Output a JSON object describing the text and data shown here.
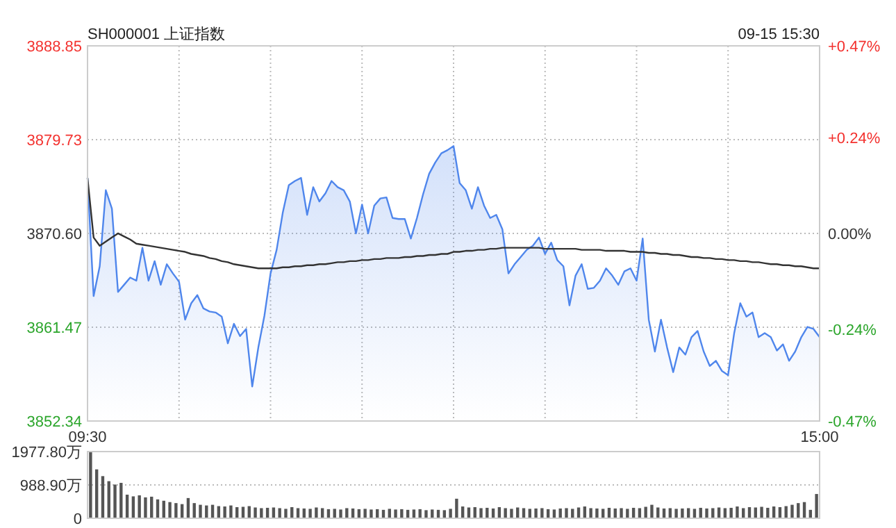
{
  "chart_data": [
    {
      "type": "area",
      "title": "SH000001 上证指数",
      "subtitle": "09-15 15:30",
      "categories": [
        "09:30",
        null,
        null,
        null,
        null,
        null,
        null,
        null,
        null,
        null,
        null,
        null,
        null,
        null,
        null,
        null,
        null,
        null,
        null,
        null,
        null,
        null,
        null,
        null,
        null,
        null,
        null,
        null,
        null,
        null,
        null,
        null,
        null,
        null,
        null,
        null,
        null,
        null,
        null,
        null,
        null,
        null,
        null,
        null,
        null,
        null,
        null,
        null,
        null,
        null,
        null,
        null,
        null,
        null,
        null,
        null,
        null,
        null,
        null,
        null,
        null,
        null,
        null,
        null,
        null,
        null,
        null,
        null,
        null,
        null,
        null,
        null,
        null,
        null,
        null,
        null,
        null,
        null,
        null,
        null,
        null,
        null,
        null,
        null,
        null,
        null,
        null,
        null,
        null,
        null,
        null,
        null,
        null,
        null,
        null,
        null,
        null,
        null,
        null,
        null,
        null,
        null,
        null,
        null,
        null,
        null,
        null,
        null,
        null,
        null,
        null,
        null,
        null,
        null,
        null,
        null,
        null,
        null,
        null,
        null,
        "15:00"
      ],
      "ylim": [
        3852.34,
        3888.85
      ],
      "yticks": [
        {
          "value": 3852.34,
          "label": "3852.34"
        },
        {
          "value": 3861.47,
          "label": "3861.47"
        },
        {
          "value": 3870.6,
          "label": "3870.60"
        },
        {
          "value": 3879.73,
          "label": "3879.73"
        },
        {
          "value": 3888.85,
          "label": "3888.85"
        }
      ],
      "y2lim": [
        -0.47,
        0.47
      ],
      "y2ticks": [
        {
          "value": -0.47,
          "label": "-0.47%"
        },
        {
          "value": -0.24,
          "label": "-0.24%"
        },
        {
          "value": 0,
          "label": "0.00%"
        },
        {
          "value": 0.24,
          "label": "+0.24%"
        },
        {
          "value": 0.47,
          "label": "+0.47%"
        }
      ],
      "grid": true,
      "series": [
        {
          "type": "area",
          "color": "#4f86ec",
          "values": [
            3876.0,
            3864.5,
            3867.4,
            3874.8,
            3873.0,
            3864.9,
            3865.6,
            3866.3,
            3866.0,
            3869.2,
            3866.0,
            3867.9,
            3865.6,
            3867.6,
            3866.7,
            3865.9,
            3862.2,
            3863.8,
            3864.6,
            3863.3,
            3863.0,
            3862.9,
            3862.5,
            3859.9,
            3861.8,
            3860.6,
            3861.3,
            3855.7,
            3859.5,
            3862.6,
            3866.7,
            3869.0,
            3872.6,
            3875.3,
            3875.7,
            3876.0,
            3872.4,
            3875.1,
            3873.7,
            3874.5,
            3875.7,
            3875.1,
            3874.8,
            3873.7,
            3870.6,
            3873.4,
            3870.6,
            3873.3,
            3874.0,
            3874.1,
            3872.1,
            3872.0,
            3872.0,
            3870.1,
            3872.1,
            3874.4,
            3876.4,
            3877.5,
            3878.4,
            3878.7,
            3879.1,
            3875.5,
            3874.8,
            3873.0,
            3875.1,
            3873.3,
            3872.1,
            3872.4,
            3871.0,
            3866.7,
            3867.6,
            3868.3,
            3869.0,
            3869.4,
            3870.2,
            3868.6,
            3869.7,
            3868.0,
            3867.4,
            3863.6,
            3866.5,
            3867.6,
            3865.2,
            3865.3,
            3866.0,
            3867.2,
            3866.5,
            3865.6,
            3866.9,
            3867.2,
            3866.0,
            3870.1,
            3862.2,
            3859.1,
            3862.2,
            3859.5,
            3857.1,
            3859.5,
            3858.8,
            3860.5,
            3861.1,
            3859.1,
            3857.7,
            3858.2,
            3857.2,
            3856.8,
            3860.9,
            3863.8,
            3862.5,
            3862.9,
            3860.5,
            3860.9,
            3860.5,
            3859.2,
            3859.8,
            3858.2,
            3859.1,
            3860.5,
            3861.5,
            3861.3,
            3860.5
          ]
        },
        {
          "type": "line",
          "color": "#333333",
          "values": [
            3876.0,
            3870.2,
            3869.4,
            3869.8,
            3870.2,
            3870.6,
            3870.3,
            3870.0,
            3869.6,
            3869.5,
            3869.4,
            3869.3,
            3869.2,
            3869.1,
            3869.0,
            3868.9,
            3868.8,
            3868.6,
            3868.5,
            3868.4,
            3868.2,
            3868.1,
            3867.9,
            3867.8,
            3867.6,
            3867.5,
            3867.4,
            3867.3,
            3867.2,
            3867.2,
            3867.2,
            3867.2,
            3867.3,
            3867.3,
            3867.4,
            3867.4,
            3867.5,
            3867.5,
            3867.6,
            3867.6,
            3867.7,
            3867.8,
            3867.8,
            3867.9,
            3867.9,
            3868.0,
            3868.0,
            3868.1,
            3868.1,
            3868.2,
            3868.2,
            3868.2,
            3868.3,
            3868.3,
            3868.4,
            3868.4,
            3868.5,
            3868.5,
            3868.6,
            3868.6,
            3868.8,
            3868.8,
            3868.9,
            3868.9,
            3869.0,
            3869.0,
            3869.1,
            3869.1,
            3869.2,
            3869.2,
            3869.2,
            3869.2,
            3869.2,
            3869.2,
            3869.2,
            3869.1,
            3869.1,
            3869.1,
            3869.1,
            3869.1,
            3869.1,
            3869.0,
            3869.0,
            3869.0,
            3869.0,
            3868.9,
            3868.9,
            3868.9,
            3868.9,
            3868.8,
            3868.8,
            3868.8,
            3868.7,
            3868.7,
            3868.6,
            3868.6,
            3868.5,
            3868.5,
            3868.4,
            3868.3,
            3868.3,
            3868.2,
            3868.2,
            3868.1,
            3868.1,
            3868.0,
            3868.0,
            3867.9,
            3867.9,
            3867.8,
            3867.8,
            3867.7,
            3867.6,
            3867.6,
            3867.5,
            3867.5,
            3867.4,
            3867.4,
            3867.3,
            3867.2,
            3867.2
          ]
        }
      ]
    },
    {
      "type": "bar",
      "categories": [
        null,
        null,
        null,
        null,
        null,
        null,
        null,
        null,
        null,
        null,
        null,
        null,
        null,
        null,
        null,
        null,
        null,
        null,
        null,
        null,
        null,
        null,
        null,
        null,
        null,
        null,
        null,
        null,
        null,
        null,
        null,
        null,
        null,
        null,
        null,
        null,
        null,
        null,
        null,
        null,
        null,
        null,
        null,
        null,
        null,
        null,
        null,
        null,
        null,
        null,
        null,
        null,
        null,
        null,
        null,
        null,
        null,
        null,
        null,
        null,
        null,
        null,
        null,
        null,
        null,
        null,
        null,
        null,
        null,
        null,
        null,
        null,
        null,
        null,
        null,
        null,
        null,
        null,
        null,
        null,
        null,
        null,
        null,
        null,
        null,
        null,
        null,
        null,
        null,
        null,
        null,
        null,
        null,
        null,
        null,
        null,
        null,
        null,
        null,
        null,
        null,
        null,
        null,
        null,
        null,
        null,
        null,
        null,
        null,
        null,
        null,
        null,
        null,
        null,
        null,
        null,
        null,
        null,
        null,
        null
      ],
      "ylim": [
        0,
        1977.8
      ],
      "yticks": [
        {
          "value": 0,
          "label": "0"
        },
        {
          "value": 988.9,
          "label": "988.90万"
        },
        {
          "value": 1977.8,
          "label": "1977.80万"
        }
      ],
      "grid": "y",
      "series": [
        {
          "color": "#555555",
          "values": [
            1970,
            1450,
            1250,
            1100,
            1000,
            1050,
            700,
            650,
            680,
            620,
            640,
            560,
            520,
            480,
            450,
            420,
            600,
            450,
            400,
            380,
            400,
            360,
            350,
            380,
            330,
            340,
            360,
            320,
            300,
            310,
            320,
            300,
            280,
            330,
            300,
            290,
            280,
            320,
            300,
            270,
            280,
            260,
            300,
            290,
            270,
            280,
            260,
            270,
            250,
            280,
            260,
            270,
            250,
            260,
            270,
            240,
            260,
            250,
            240,
            280,
            580,
            350,
            320,
            330,
            300,
            310,
            290,
            330,
            300,
            280,
            320,
            300,
            280,
            290,
            300,
            270,
            260,
            290,
            300,
            280,
            320,
            350,
            300,
            290,
            280,
            310,
            290,
            300,
            280,
            310,
            300,
            340,
            400,
            320,
            290,
            300,
            280,
            290,
            300,
            280,
            310,
            290,
            300,
            320,
            300,
            310,
            350,
            300,
            330,
            320,
            340,
            310,
            350,
            330,
            360,
            400,
            450,
            480,
            250,
            720
          ]
        }
      ]
    }
  ]
}
